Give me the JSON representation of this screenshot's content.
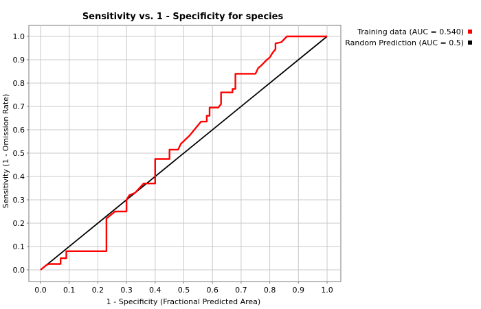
{
  "chart_data": {
    "type": "line",
    "title": "Sensitivity vs. 1 - Specificity for species",
    "xlabel": "1 - Specificity  (Fractional Predicted Area)",
    "ylabel": "Sensitivity  (1 - Omission Rate)",
    "xlim": [
      0,
      1
    ],
    "ylim": [
      0,
      1
    ],
    "x_ticks": [
      "0.0",
      "0.1",
      "0.2",
      "0.3",
      "0.4",
      "0.5",
      "0.6",
      "0.7",
      "0.8",
      "0.9",
      "1.0"
    ],
    "y_ticks": [
      "0.0",
      "0.1",
      "0.2",
      "0.3",
      "0.4",
      "0.5",
      "0.6",
      "0.7",
      "0.8",
      "0.9",
      "1.0"
    ],
    "grid": true,
    "legend_position": "top-right",
    "series": [
      {
        "name": "Training data (AUC = 0.540)",
        "color": "#ff0000",
        "points": [
          [
            0.0,
            0.0
          ],
          [
            0.02,
            0.02
          ],
          [
            0.03,
            0.025
          ],
          [
            0.07,
            0.025
          ],
          [
            0.07,
            0.05
          ],
          [
            0.09,
            0.05
          ],
          [
            0.09,
            0.08
          ],
          [
            0.23,
            0.08
          ],
          [
            0.23,
            0.22
          ],
          [
            0.26,
            0.25
          ],
          [
            0.3,
            0.25
          ],
          [
            0.3,
            0.3
          ],
          [
            0.31,
            0.32
          ],
          [
            0.33,
            0.33
          ],
          [
            0.36,
            0.37
          ],
          [
            0.4,
            0.37
          ],
          [
            0.4,
            0.475
          ],
          [
            0.45,
            0.475
          ],
          [
            0.45,
            0.515
          ],
          [
            0.48,
            0.515
          ],
          [
            0.49,
            0.54
          ],
          [
            0.52,
            0.575
          ],
          [
            0.56,
            0.635
          ],
          [
            0.58,
            0.635
          ],
          [
            0.58,
            0.66
          ],
          [
            0.59,
            0.66
          ],
          [
            0.59,
            0.695
          ],
          [
            0.62,
            0.695
          ],
          [
            0.63,
            0.71
          ],
          [
            0.63,
            0.76
          ],
          [
            0.67,
            0.76
          ],
          [
            0.67,
            0.775
          ],
          [
            0.68,
            0.775
          ],
          [
            0.68,
            0.84
          ],
          [
            0.75,
            0.84
          ],
          [
            0.76,
            0.865
          ],
          [
            0.77,
            0.875
          ],
          [
            0.79,
            0.9
          ],
          [
            0.8,
            0.91
          ],
          [
            0.81,
            0.93
          ],
          [
            0.82,
            0.945
          ],
          [
            0.82,
            0.97
          ],
          [
            0.84,
            0.975
          ],
          [
            0.86,
            1.0
          ],
          [
            1.0,
            1.0
          ]
        ]
      },
      {
        "name": "Random Prediction (AUC = 0.5)",
        "color": "#000000",
        "points": [
          [
            0.0,
            0.0
          ],
          [
            1.0,
            1.0
          ]
        ]
      }
    ]
  }
}
